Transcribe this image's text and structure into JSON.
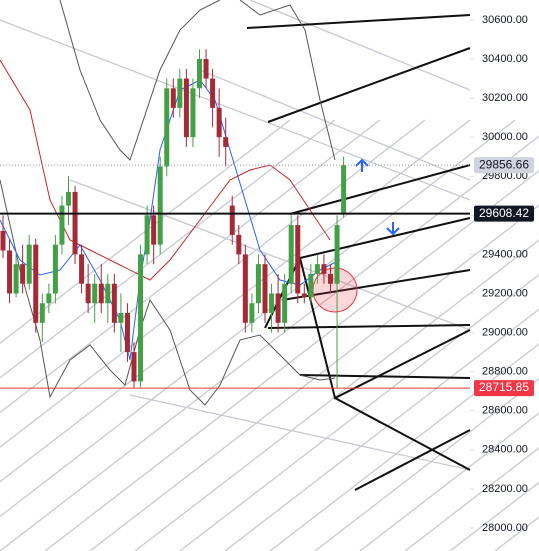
{
  "chart_data": {
    "type": "candlestick",
    "open": [
      29520,
      29420,
      29200,
      29350,
      29250,
      29450,
      29050,
      29150,
      29200,
      29450,
      29650,
      29720,
      29400,
      29250,
      29150,
      29250,
      29150,
      29250,
      29050,
      29100,
      28900,
      28750,
      29400,
      29600,
      29450,
      29850,
      30250,
      30150,
      30300,
      30000,
      30250,
      30400,
      30300,
      30150,
      30000,
      29650,
      29500,
      29400,
      29050,
      29150,
      29350,
      29100,
      29200,
      29050,
      29250,
      29550,
      29200,
      29180,
      29300,
      29350,
      29300,
      29250,
      29608
    ],
    "high": [
      29600,
      29480,
      29400,
      29450,
      29500,
      29480,
      29200,
      29250,
      29500,
      29700,
      29800,
      29750,
      29450,
      29350,
      29300,
      29350,
      29300,
      29300,
      29200,
      29150,
      28950,
      29450,
      29650,
      29650,
      29900,
      30300,
      30300,
      30350,
      30350,
      30300,
      30450,
      30450,
      30350,
      30250,
      30100,
      29700,
      29550,
      29450,
      29200,
      29400,
      29400,
      29250,
      29300,
      29300,
      29600,
      29600,
      29250,
      29350,
      29400,
      29400,
      29350,
      29600,
      29900
    ],
    "low": [
      29380,
      29150,
      29180,
      29200,
      29220,
      29000,
      28950,
      29100,
      29150,
      29400,
      29550,
      29350,
      29200,
      29100,
      29050,
      29100,
      29050,
      29000,
      28900,
      28850,
      28715.85,
      28720,
      29350,
      29350,
      29400,
      29800,
      30100,
      30100,
      29950,
      29950,
      30200,
      30250,
      30050,
      29900,
      29850,
      29450,
      29350,
      29000,
      29000,
      29100,
      29050,
      29000,
      29000,
      29000,
      29200,
      29150,
      29150,
      29150,
      29250,
      29250,
      29200,
      28715.85,
      29590
    ],
    "close": [
      29420,
      29200,
      29350,
      29250,
      29450,
      29050,
      29150,
      29200,
      29450,
      29650,
      29720,
      29400,
      29250,
      29150,
      29250,
      29150,
      29250,
      29050,
      29100,
      28900,
      28750,
      29400,
      29600,
      29450,
      29850,
      30250,
      30150,
      30300,
      30000,
      30250,
      30400,
      30300,
      30150,
      30000,
      29950,
      29500,
      29400,
      29050,
      29150,
      29350,
      29100,
      29200,
      29050,
      29250,
      29550,
      29200,
      29180,
      29300,
      29350,
      29300,
      29250,
      29550,
      29856.66
    ],
    "up_color": "#43a047",
    "down_color": "#a52a38",
    "ylim": [
      27882,
      30702
    ],
    "yticks": [
      {
        "value": 28000,
        "label": "28000.00"
      },
      {
        "value": 28200,
        "label": "28200.00"
      },
      {
        "value": 28400,
        "label": "28400.00"
      },
      {
        "value": 28600,
        "label": "28600.00"
      },
      {
        "value": 28800,
        "label": "28800.00"
      },
      {
        "value": 29000,
        "label": "29000.00"
      },
      {
        "value": 29200,
        "label": "29200.00"
      },
      {
        "value": 29400,
        "label": "29400.00"
      },
      {
        "value": 29600,
        "label": "29600.00"
      },
      {
        "value": 29800,
        "label": "29800.00"
      },
      {
        "value": 30000,
        "label": "30000.00"
      },
      {
        "value": 30200,
        "label": "30200.00"
      },
      {
        "value": 30400,
        "label": "30400.00"
      },
      {
        "value": 30600,
        "label": "30600.00"
      }
    ],
    "last_price": 29856.66,
    "level_line": 29608.42,
    "low_line": 28715.85
  }
}
